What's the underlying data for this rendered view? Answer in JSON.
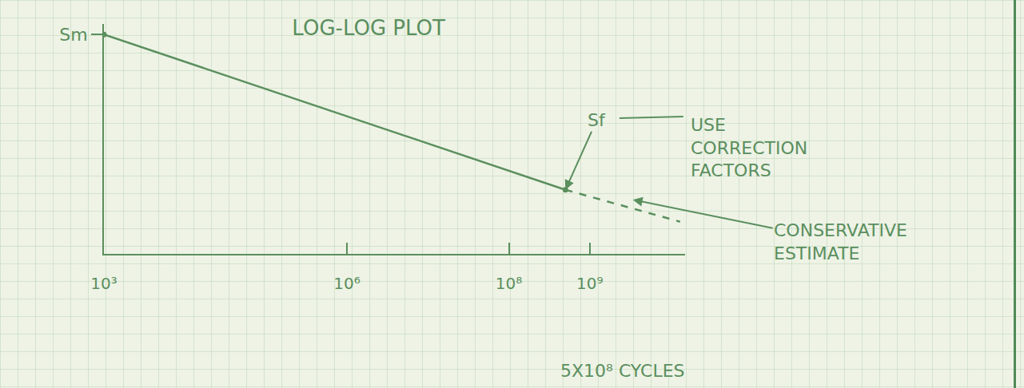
{
  "chart_data": {
    "type": "line",
    "title": "LOG-LOG PLOT",
    "log": true,
    "grid": false,
    "xlim": [
      1000,
      15000000000
    ],
    "xticks": [
      {
        "value": 1000,
        "label": "10³"
      },
      {
        "value": 1000000,
        "label": "10⁶"
      },
      {
        "value": 100000000,
        "label": "10⁸"
      },
      {
        "value": 1000000000,
        "label": "10⁹"
      }
    ],
    "ylim": [
      1,
      10
    ],
    "yticks": [
      {
        "value": 9,
        "label": "Sm"
      }
    ],
    "series": [
      {
        "x": [
          1000,
          500000000
        ],
        "values": [
          9,
          1.9
        ],
        "color": "#5b8f5e",
        "line_style": "solid",
        "marker": "circle"
      },
      {
        "x": [
          500000000,
          13000000000
        ],
        "values": [
          1.9,
          1.38
        ],
        "color": "#5b8f5e",
        "line_style": "dashed"
      }
    ],
    "annotations": [
      {
        "text": "Sf",
        "x": 500000000,
        "y": 1.9
      },
      {
        "text": "USE CORRECTION FACTORS"
      },
      {
        "text": "CONSERVATIVE ESTIMATE",
        "x": 3400000000,
        "y": 1.72
      },
      {
        "text": "5X10⁸ CYCLES",
        "x": 500000000
      }
    ]
  }
}
